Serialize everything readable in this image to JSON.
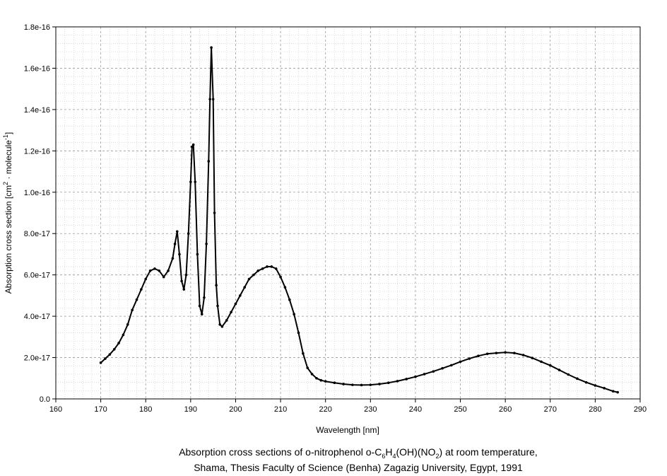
{
  "chart_data": {
    "type": "line",
    "xlabel": "Wavelength [nm]",
    "ylabel": {
      "pre": "Absorption cross section [cm",
      "sup1": "2",
      "mid": " · molecule",
      "sup2": "-1",
      "post": "]"
    },
    "xlim": [
      160,
      290
    ],
    "ylim": [
      0,
      1.8e-16
    ],
    "x_ticks": [
      160,
      170,
      180,
      190,
      200,
      210,
      220,
      230,
      240,
      250,
      260,
      270,
      280,
      290
    ],
    "x_tick_labels": [
      "160",
      "170",
      "180",
      "190",
      "200",
      "210",
      "220",
      "230",
      "240",
      "250",
      "260",
      "270",
      "280",
      "290"
    ],
    "y_ticks": [
      0,
      2e-17,
      4e-17,
      6e-17,
      8e-17,
      1e-16,
      1.2e-16,
      1.4e-16,
      1.6e-16,
      1.8e-16
    ],
    "y_tick_labels": [
      "0.0",
      "2.0e-17",
      "4.0e-17",
      "6.0e-17",
      "8.0e-17",
      "1.0e-16",
      "1.2e-16",
      "1.4e-16",
      "1.6e-16",
      "1.8e-16"
    ],
    "grid": true,
    "legend": "none",
    "line_color": "#000000",
    "series": [
      {
        "x": [
          170,
          171,
          172,
          173,
          174,
          175,
          176,
          177,
          178,
          179,
          180,
          181,
          182,
          183,
          184,
          185,
          186,
          186.5,
          187,
          187.5,
          188,
          188.5,
          189,
          189.5,
          190,
          190.3,
          190.6,
          191,
          191.5,
          192,
          192.5,
          193,
          193.5,
          194,
          194.3,
          194.6,
          195,
          195.3,
          195.7,
          196,
          196.5,
          197,
          198,
          199,
          200,
          201,
          202,
          203,
          204,
          205,
          206,
          207,
          208,
          209,
          210,
          211,
          212,
          213,
          214,
          215,
          216,
          217,
          218,
          219,
          220,
          222,
          224,
          226,
          228,
          230,
          232,
          234,
          236,
          238,
          240,
          242,
          244,
          246,
          248,
          250,
          252,
          254,
          256,
          258,
          260,
          262,
          264,
          266,
          268,
          270,
          272,
          274,
          276,
          278,
          280,
          282,
          284,
          285
        ],
        "y": [
          1.75e-17,
          1.95e-17,
          2.15e-17,
          2.4e-17,
          2.7e-17,
          3.1e-17,
          3.6e-17,
          4.3e-17,
          4.8e-17,
          5.3e-17,
          5.8e-17,
          6.2e-17,
          6.3e-17,
          6.2e-17,
          5.9e-17,
          6.2e-17,
          6.8e-17,
          7.5e-17,
          8.1e-17,
          7e-17,
          5.7e-17,
          5.3e-17,
          6e-17,
          8e-17,
          1.05e-16,
          1.22e-16,
          1.23e-16,
          1.05e-16,
          7e-17,
          4.5e-17,
          4.1e-17,
          4.9e-17,
          7.5e-17,
          1.15e-16,
          1.45e-16,
          1.7e-16,
          1.45e-16,
          9e-17,
          5.5e-17,
          4.5e-17,
          3.6e-17,
          3.5e-17,
          3.8e-17,
          4.2e-17,
          4.6e-17,
          5e-17,
          5.4e-17,
          5.8e-17,
          6e-17,
          6.2e-17,
          6.3e-17,
          6.4e-17,
          6.4e-17,
          6.3e-17,
          5.9e-17,
          5.4e-17,
          4.8e-17,
          4.1e-17,
          3.2e-17,
          2.2e-17,
          1.5e-17,
          1.2e-17,
          1e-17,
          9e-18,
          8.5e-18,
          7.8e-18,
          7.2e-18,
          6.8e-18,
          6.7e-18,
          6.8e-18,
          7.2e-18,
          7.8e-18,
          8.6e-18,
          9.6e-18,
          1.07e-17,
          1.2e-17,
          1.33e-17,
          1.48e-17,
          1.63e-17,
          1.8e-17,
          1.95e-17,
          2.08e-17,
          2.18e-17,
          2.22e-17,
          2.25e-17,
          2.22e-17,
          2.12e-17,
          1.98e-17,
          1.8e-17,
          1.62e-17,
          1.4e-17,
          1.18e-17,
          9.8e-18,
          8e-18,
          6.5e-18,
          5.2e-18,
          3.7e-18,
          3.2e-18
        ]
      }
    ]
  },
  "caption": {
    "line1_a": "Absorption cross sections of o-nitrophenol o-C",
    "line1_sub1": "6",
    "line1_b": "H",
    "line1_sub2": "4",
    "line1_c": "(OH)(NO",
    "line1_sub3": "2",
    "line1_d": ") at room temperature,",
    "line2": "Shama, Thesis Faculty of Science (Benha) Zagazig University, Egypt, 1991"
  }
}
